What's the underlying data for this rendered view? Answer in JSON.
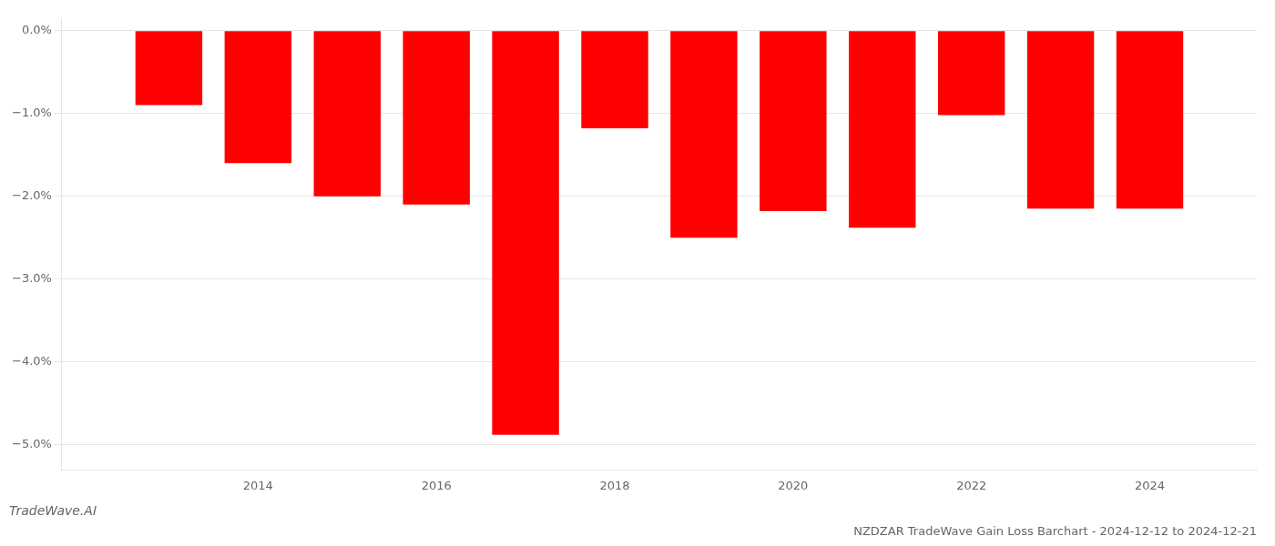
{
  "chart_data": {
    "type": "bar",
    "title": "NZDZAR TradeWave Gain Loss Barchart - 2024-12-12 to 2024-12-21",
    "annotations": [
      "TradeWave.AI"
    ],
    "x": [
      2013,
      2014,
      2015,
      2016,
      2017,
      2018,
      2019,
      2020,
      2021,
      2022,
      2023,
      2024
    ],
    "values": [
      -0.9,
      -1.6,
      -2.0,
      -2.1,
      -4.88,
      -1.18,
      -2.5,
      -2.18,
      -2.38,
      -1.02,
      -2.15,
      -2.15
    ],
    "color": "#ff0000",
    "xlim": [
      2011.8,
      2025.2
    ],
    "xticks": [
      2014,
      2016,
      2018,
      2020,
      2022,
      2024
    ],
    "ylim": [
      -5.3,
      0.15
    ],
    "yticks": [
      {
        "value": 0.0,
        "label": "0.0%"
      },
      {
        "value": -1.0,
        "label": "−1.0%"
      },
      {
        "value": -2.0,
        "label": "−2.0%"
      },
      {
        "value": -3.0,
        "label": "−3.0%"
      },
      {
        "value": -4.0,
        "label": "−4.0%"
      },
      {
        "value": -5.0,
        "label": "−5.0%"
      }
    ],
    "grid": true
  }
}
